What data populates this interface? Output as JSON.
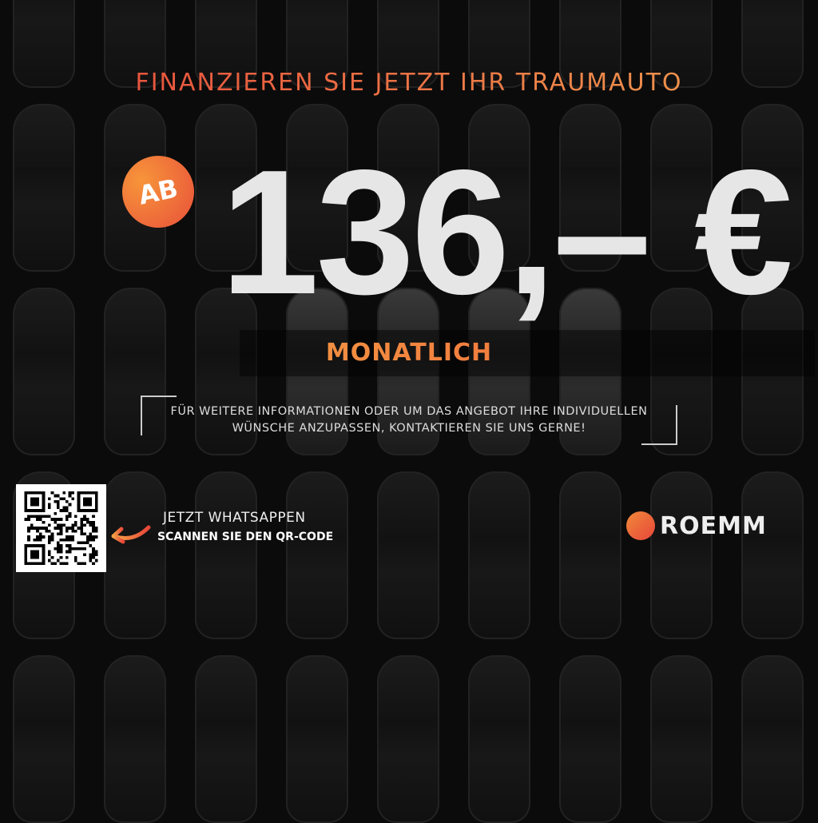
{
  "headline": "FINANZIEREN SIE  JETZT IHR TRAUMAUTO",
  "badge": "AB",
  "price": "136,– €",
  "period": "MONATLICH",
  "info": {
    "line1": "FÜR WEITERE INFORMATIONEN ODER UM DAS ANGEBOT IHRE INDIVIDUELLEN",
    "line2": "WÜNSCHE ANZUPASSEN, KONTAKTIEREN SIE UNS GERNE!"
  },
  "contact": {
    "whatsapp": "JETZT WHATSAPPEN",
    "scan": "SCANNEN SIE DEN QR-CODE"
  },
  "brand": "ROEMM",
  "colors": {
    "accent_red": "#e8463a",
    "accent_orange": "#f5a146",
    "background": "#0b0b0b"
  }
}
